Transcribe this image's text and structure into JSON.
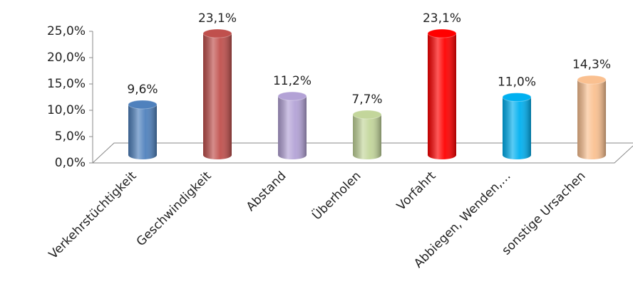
{
  "chart_data": {
    "type": "bar",
    "categories": [
      "Verkehrstüchtigkeit",
      "Geschwindigkeit",
      "Abstand",
      "Überholen",
      "Vorfahrt",
      "Abbiegen, Wenden,…",
      "sonstige Ursachen"
    ],
    "values": [
      9.6,
      23.1,
      11.2,
      7.7,
      23.1,
      11.0,
      14.3
    ],
    "value_labels": [
      "9,6%",
      "23,1%",
      "11,2%",
      "7,7%",
      "23,1%",
      "11,0%",
      "14,3%"
    ],
    "colors": [
      "#4f81bd",
      "#c0504d",
      "#b3a2d6",
      "#c3d69b",
      "#ff0000",
      "#00b0f0",
      "#fac090"
    ],
    "ylim": [
      0,
      25
    ],
    "yticks": [
      {
        "value": 0,
        "label": "0,0%"
      },
      {
        "value": 5,
        "label": "5,0%"
      },
      {
        "value": 10,
        "label": "10,0%"
      },
      {
        "value": 15,
        "label": "15,0%"
      },
      {
        "value": 20,
        "label": "20,0%"
      },
      {
        "value": 25,
        "label": "25,0%"
      }
    ]
  }
}
